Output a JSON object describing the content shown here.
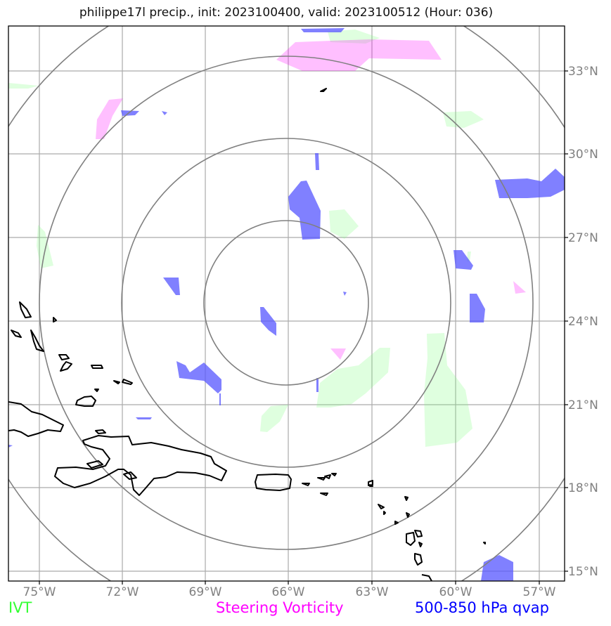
{
  "title": "philippe17l precip., init: 2023100400, valid: 2023100512 (Hour: 036)",
  "map": {
    "lon_ticks": [
      "75°W",
      "72°W",
      "69°W",
      "66°W",
      "63°W",
      "60°W",
      "57°W"
    ],
    "lat_ticks": [
      "33°N",
      "30°N",
      "27°N",
      "24°N",
      "21°N",
      "18°N",
      "15°N"
    ],
    "grid": true,
    "range_rings": 4,
    "colors": {
      "ivt": "#7fff7f",
      "steering_vorticity": "#ff00ff",
      "qvap": "#0000ff"
    }
  },
  "legend": {
    "ivt": "IVT",
    "steering_vorticity": "Steering Vorticity",
    "qvap": "500-850 hPa qvap"
  }
}
